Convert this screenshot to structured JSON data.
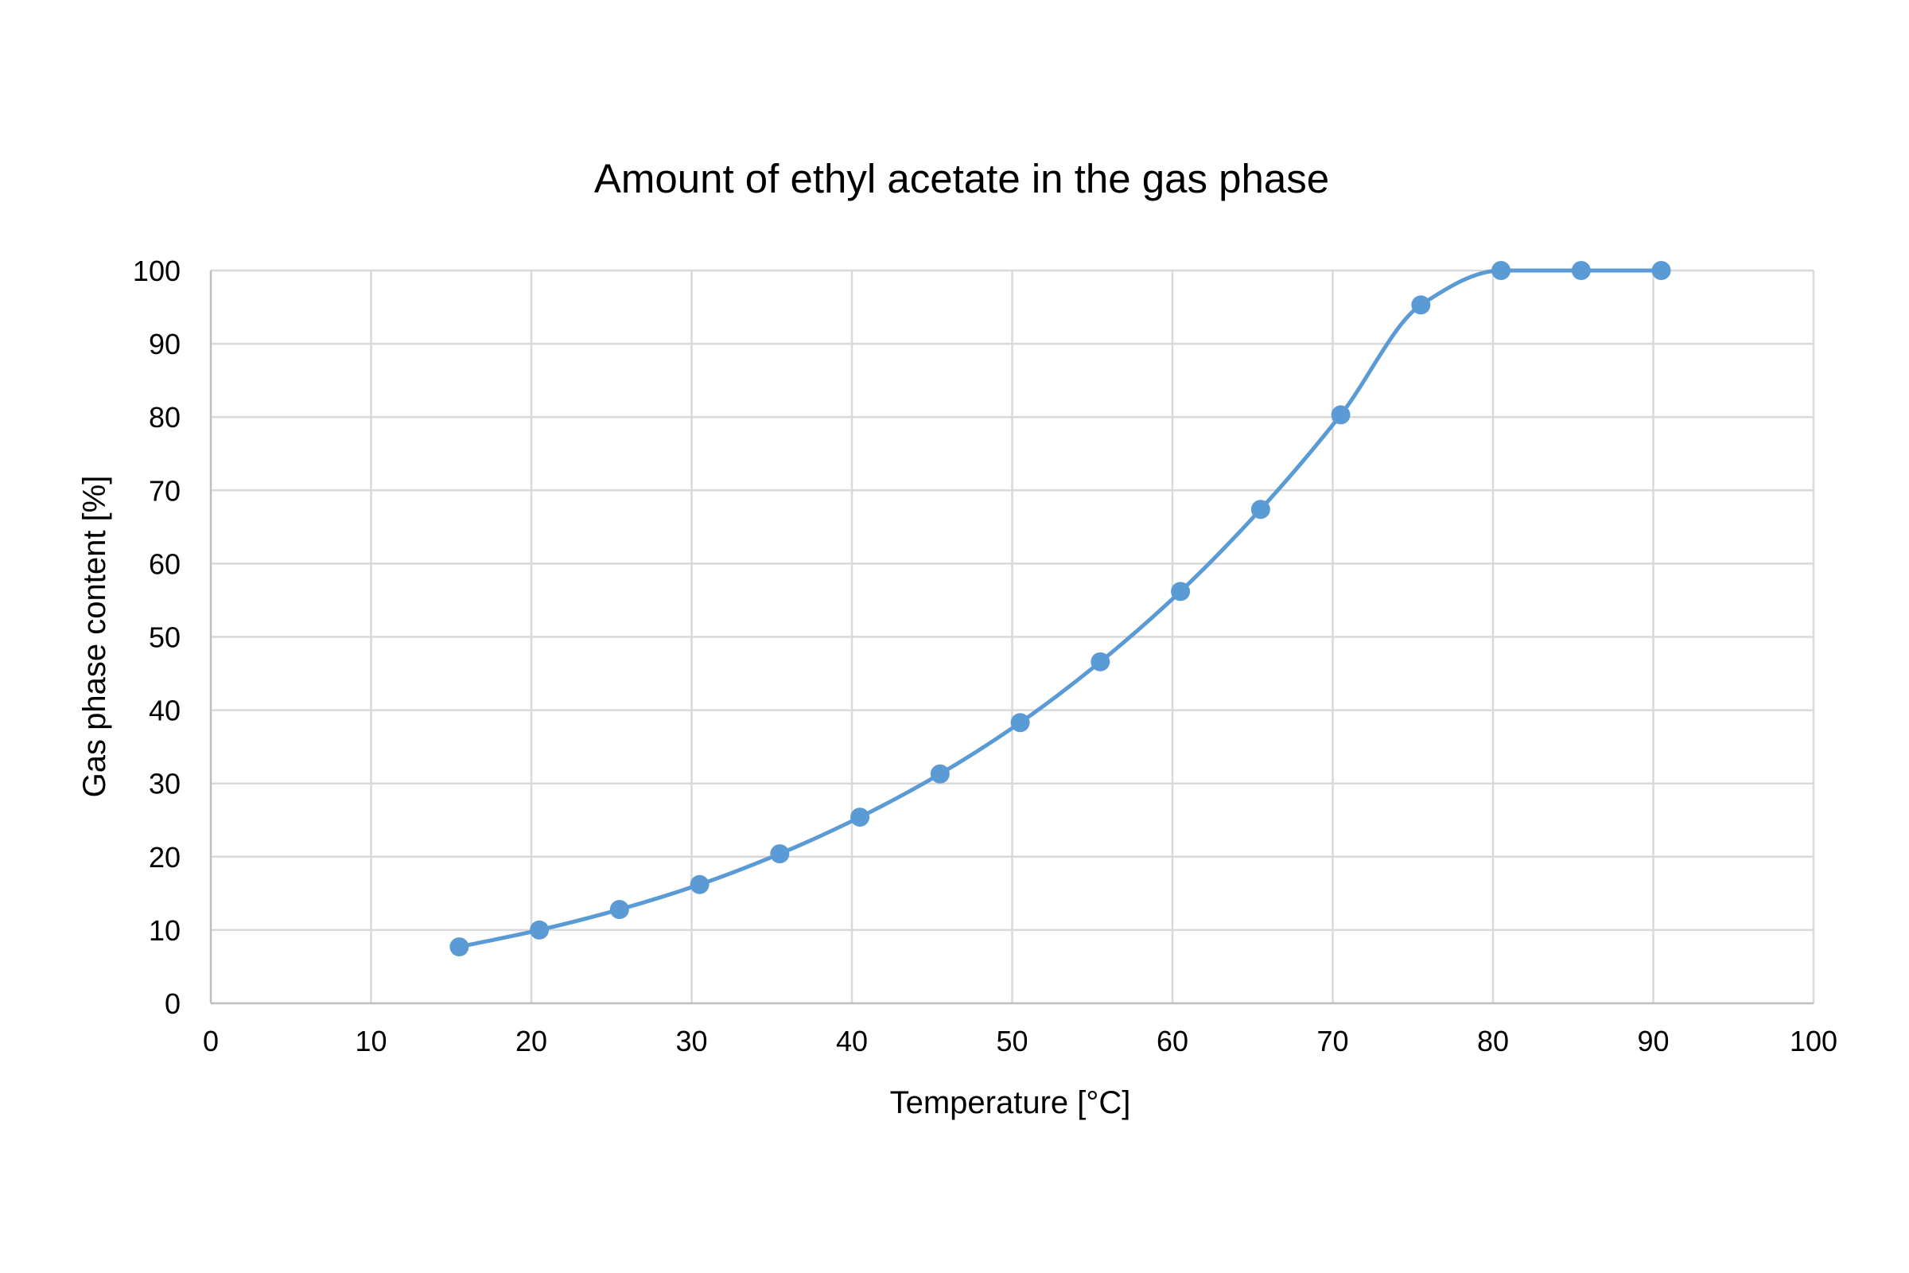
{
  "chart_data": {
    "type": "scatter",
    "title": "Amount of ethyl acetate in the gas phase",
    "xlabel": "Temperature [°C]",
    "ylabel": "Gas phase content [%]",
    "xlim": [
      0,
      100
    ],
    "ylim": [
      0,
      100
    ],
    "x_ticks": [
      0,
      10,
      20,
      30,
      40,
      50,
      60,
      70,
      80,
      90,
      100
    ],
    "y_ticks": [
      0,
      10,
      20,
      30,
      40,
      50,
      60,
      70,
      80,
      90,
      100
    ],
    "x_tick_labels": [
      "0",
      "10",
      "20",
      "30",
      "40",
      "50",
      "60",
      "70",
      "80",
      "90",
      "100"
    ],
    "y_tick_labels": [
      "0",
      "10",
      "20",
      "30",
      "40",
      "50",
      "60",
      "70",
      "80",
      "90",
      "100"
    ],
    "grid": true,
    "legend": "none",
    "line_style": "smoothed line with markers",
    "series": [
      {
        "color": "#5b9bd5",
        "points": [
          {
            "x": 15.5,
            "y": 7.7
          },
          {
            "x": 20.5,
            "y": 10.0
          },
          {
            "x": 25.5,
            "y": 12.8
          },
          {
            "x": 30.5,
            "y": 16.2
          },
          {
            "x": 35.5,
            "y": 20.4
          },
          {
            "x": 40.5,
            "y": 25.4
          },
          {
            "x": 45.5,
            "y": 31.3
          },
          {
            "x": 50.5,
            "y": 38.3
          },
          {
            "x": 55.5,
            "y": 46.6
          },
          {
            "x": 60.5,
            "y": 56.2
          },
          {
            "x": 65.5,
            "y": 67.4
          },
          {
            "x": 70.5,
            "y": 80.3
          },
          {
            "x": 75.5,
            "y": 95.3
          },
          {
            "x": 80.5,
            "y": 100.0
          },
          {
            "x": 85.5,
            "y": 100.0
          },
          {
            "x": 90.5,
            "y": 100.0
          }
        ]
      }
    ]
  }
}
